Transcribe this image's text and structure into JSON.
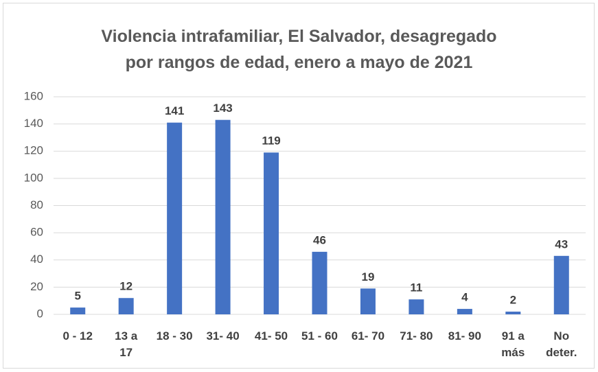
{
  "chart_data": {
    "type": "bar",
    "title": "Violencia intrafamiliar, El Salvador, desagregado\npor rangos de edad, enero a mayo de 2021",
    "categories": [
      "0 - 12",
      "13 a\n17",
      "18 - 30",
      "31- 40",
      "41- 50",
      "51 - 60",
      "61- 70",
      "71- 80",
      "81- 90",
      "91 a\nmás",
      "No\ndeter."
    ],
    "values": [
      5,
      12,
      141,
      143,
      119,
      46,
      19,
      11,
      4,
      2,
      43
    ],
    "color": "#4472c4",
    "ylim": [
      0,
      160
    ],
    "yticks": [
      0,
      20,
      40,
      60,
      80,
      100,
      120,
      140,
      160
    ],
    "grid": true
  }
}
